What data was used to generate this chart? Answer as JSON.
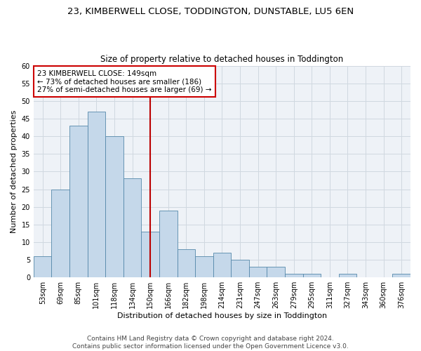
{
  "title": "23, KIMBERWELL CLOSE, TODDINGTON, DUNSTABLE, LU5 6EN",
  "subtitle": "Size of property relative to detached houses in Toddington",
  "xlabel": "Distribution of detached houses by size in Toddington",
  "ylabel": "Number of detached properties",
  "bar_values": [
    6,
    25,
    43,
    47,
    40,
    28,
    13,
    19,
    8,
    6,
    7,
    5,
    3,
    3,
    1,
    1,
    0,
    1,
    0,
    0,
    1
  ],
  "all_labels": [
    "53sqm",
    "69sqm",
    "85sqm",
    "101sqm",
    "118sqm",
    "134sqm",
    "150sqm",
    "166sqm",
    "182sqm",
    "198sqm",
    "214sqm",
    "231sqm",
    "247sqm",
    "263sqm",
    "279sqm",
    "295sqm",
    "311sqm",
    "327sqm",
    "343sqm",
    "360sqm",
    "376sqm"
  ],
  "bar_color": "#c5d8ea",
  "bar_edge_color": "#5588aa",
  "vline_x": 6,
  "vline_color": "#bb0000",
  "annotation_text": "23 KIMBERWELL CLOSE: 149sqm\n← 73% of detached houses are smaller (186)\n27% of semi-detached houses are larger (69) →",
  "annotation_box_color": "#cc0000",
  "ylim": [
    0,
    60
  ],
  "yticks": [
    0,
    5,
    10,
    15,
    20,
    25,
    30,
    35,
    40,
    45,
    50,
    55,
    60
  ],
  "grid_color": "#d0d8e0",
  "bg_color": "#eef2f7",
  "footer1": "Contains HM Land Registry data © Crown copyright and database right 2024.",
  "footer2": "Contains public sector information licensed under the Open Government Licence v3.0.",
  "title_fontsize": 9.5,
  "subtitle_fontsize": 8.5,
  "axis_label_fontsize": 8,
  "tick_fontsize": 7,
  "annotation_fontsize": 7.5,
  "footer_fontsize": 6.5
}
